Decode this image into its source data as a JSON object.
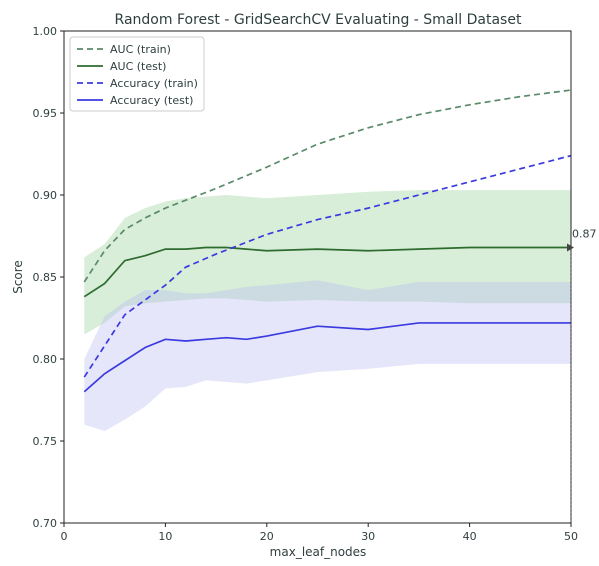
{
  "chart_data": {
    "type": "line",
    "title": "Random Forest - GridSearchCV Evaluating - Small Dataset",
    "xlabel": "max_leaf_nodes",
    "ylabel": "Score",
    "xlim": [
      0,
      50
    ],
    "ylim": [
      0.7,
      1.0
    ],
    "x_ticks": [
      "0",
      "10",
      "20",
      "30",
      "40",
      "50"
    ],
    "y_ticks": [
      "0.70",
      "0.75",
      "0.80",
      "0.85",
      "0.90",
      "0.95",
      "1.00"
    ],
    "grid": false,
    "legend_position": "top-left",
    "series": [
      {
        "name": "AUC (train)",
        "color": "#5a8a6a",
        "style": "dashed",
        "x": [
          2,
          4,
          6,
          8,
          10,
          15,
          20,
          25,
          30,
          35,
          40,
          45,
          50
        ],
        "values": [
          0.847,
          0.866,
          0.879,
          0.886,
          0.892,
          0.904,
          0.917,
          0.931,
          0.941,
          0.949,
          0.955,
          0.96,
          0.964
        ]
      },
      {
        "name": "AUC (test)",
        "color": "#2e6b2e",
        "style": "solid",
        "x": [
          2,
          4,
          6,
          8,
          10,
          12,
          14,
          16,
          18,
          20,
          25,
          30,
          35,
          40,
          45,
          50
        ],
        "values": [
          0.838,
          0.846,
          0.86,
          0.863,
          0.867,
          0.867,
          0.868,
          0.868,
          0.867,
          0.866,
          0.867,
          0.866,
          0.867,
          0.868,
          0.868,
          0.868
        ],
        "band_low": [
          0.815,
          0.822,
          0.832,
          0.834,
          0.835,
          0.836,
          0.837,
          0.837,
          0.836,
          0.835,
          0.836,
          0.835,
          0.835,
          0.834,
          0.834,
          0.834
        ],
        "band_high": [
          0.862,
          0.87,
          0.886,
          0.892,
          0.896,
          0.898,
          0.899,
          0.9,
          0.899,
          0.898,
          0.9,
          0.902,
          0.903,
          0.903,
          0.903,
          0.903
        ],
        "band_color": "#8fce8f"
      },
      {
        "name": "Accuracy (train)",
        "color": "#3a3ae0",
        "style": "dashed",
        "x": [
          2,
          4,
          6,
          8,
          10,
          12,
          15,
          20,
          25,
          30,
          35,
          40,
          45,
          50
        ],
        "values": [
          0.789,
          0.808,
          0.827,
          0.836,
          0.845,
          0.856,
          0.864,
          0.876,
          0.885,
          0.892,
          0.9,
          0.908,
          0.916,
          0.924
        ],
        "band_low": [
          0.8,
          0.82,
          0.835,
          0.837,
          0.838,
          0.837,
          0.836,
          0.837,
          0.838,
          0.836,
          0.836,
          0.835,
          0.836,
          0.836
        ],
        "band_high": [
          0.8,
          0.82,
          0.835,
          0.84,
          0.841,
          0.84,
          0.84,
          0.842,
          0.845,
          0.84,
          0.843,
          0.845,
          0.846,
          0.846
        ]
      },
      {
        "name": "Accuracy (test)",
        "color": "#3a3ae0",
        "style": "solid",
        "x": [
          2,
          4,
          6,
          8,
          10,
          12,
          14,
          16,
          18,
          20,
          25,
          30,
          35,
          40,
          45,
          50
        ],
        "values": [
          0.78,
          0.791,
          0.799,
          0.807,
          0.812,
          0.811,
          0.812,
          0.813,
          0.812,
          0.814,
          0.82,
          0.818,
          0.822,
          0.822,
          0.822,
          0.822
        ],
        "band_low": [
          0.76,
          0.756,
          0.763,
          0.771,
          0.782,
          0.783,
          0.787,
          0.786,
          0.785,
          0.787,
          0.792,
          0.794,
          0.797,
          0.797,
          0.797,
          0.797
        ],
        "band_high": [
          0.8,
          0.826,
          0.835,
          0.842,
          0.842,
          0.84,
          0.84,
          0.842,
          0.844,
          0.845,
          0.848,
          0.842,
          0.847,
          0.847,
          0.847,
          0.847
        ],
        "band_color": "#b8b8f4"
      }
    ],
    "annotation": {
      "text": "0.87",
      "x": 50,
      "y": 0.868
    }
  }
}
